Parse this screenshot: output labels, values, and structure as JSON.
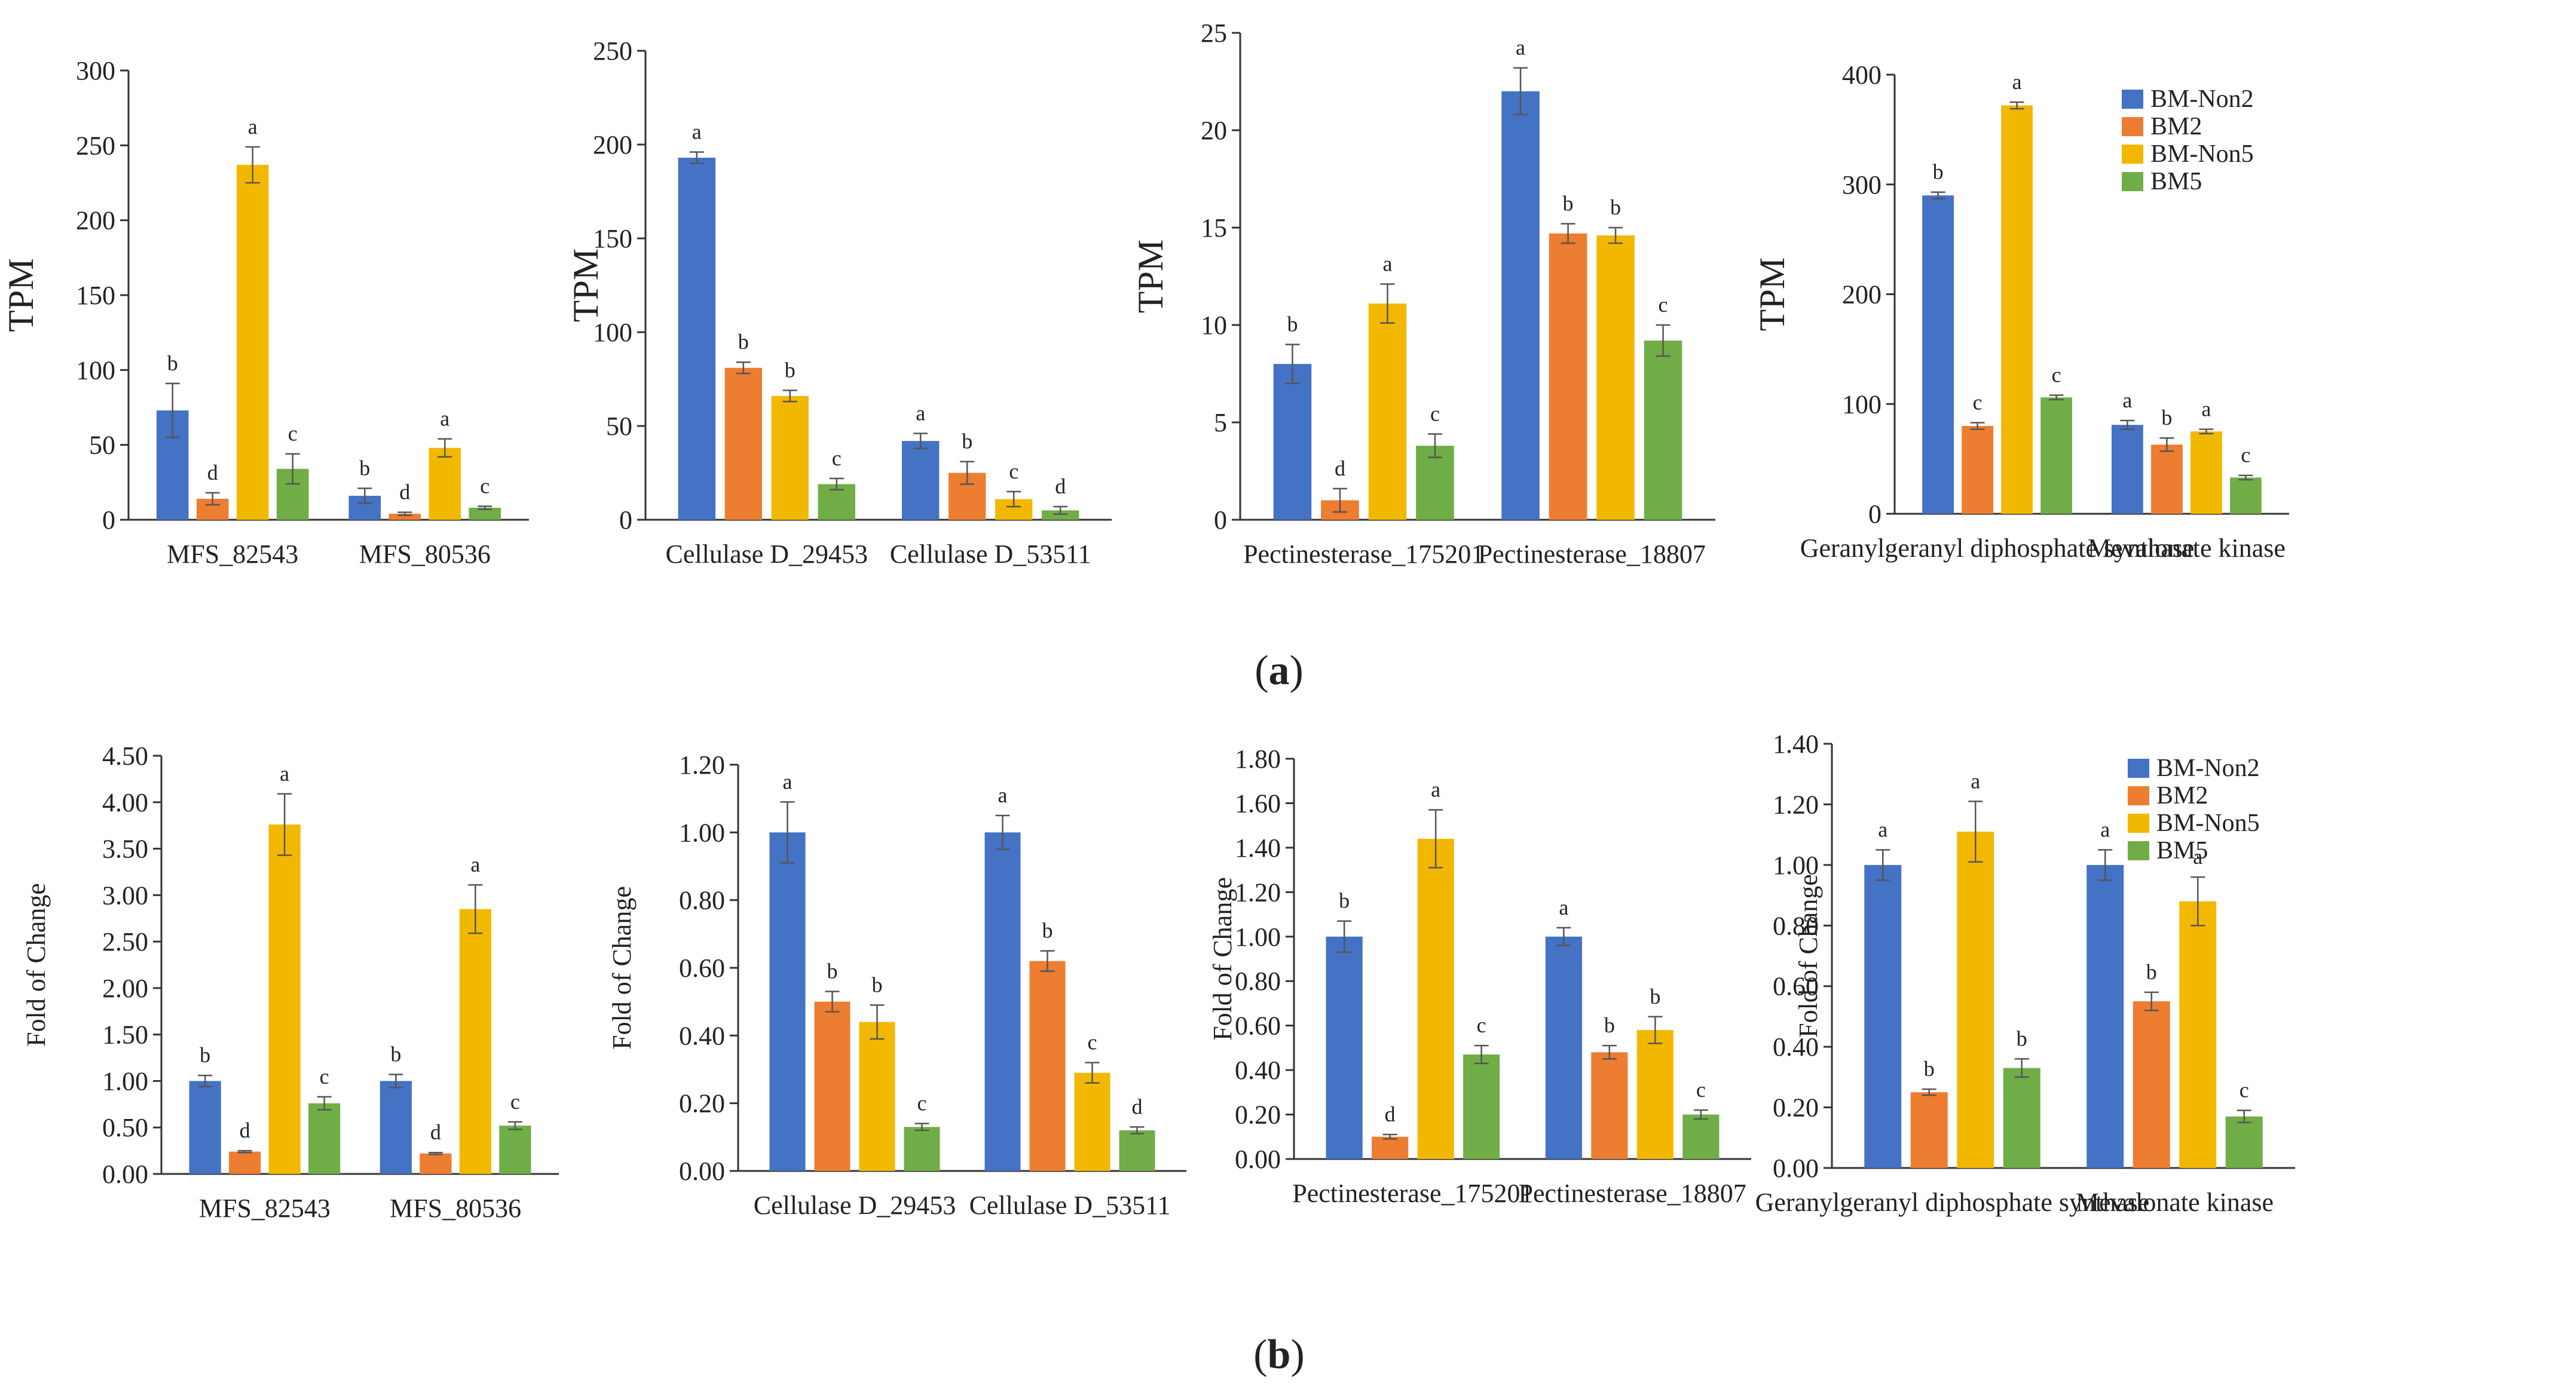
{
  "colors": {
    "BM-Non2": "#4472C4",
    "BM2": "#ED7D31",
    "BM-Non5": "#F2B800",
    "BM5": "#70AD47",
    "axis": "#333333",
    "error": "#555555"
  },
  "legend_items": [
    "BM-Non2",
    "BM2",
    "BM-Non5",
    "BM5"
  ],
  "chart_data": [
    {
      "type": "bar",
      "row": "a",
      "ylabel": "TPM",
      "ylim": [
        0,
        300
      ],
      "yticks": [
        "0",
        "50",
        "100",
        "150",
        "200",
        "250",
        "300"
      ],
      "categories": [
        "MFS_82543",
        "MFS_80536"
      ],
      "series": [
        {
          "name": "BM-Non2",
          "values": [
            73,
            16
          ],
          "errors": [
            18,
            5
          ],
          "letters": [
            "b",
            "b"
          ]
        },
        {
          "name": "BM2",
          "values": [
            14,
            4
          ],
          "errors": [
            4,
            1
          ],
          "letters": [
            "d",
            "d"
          ]
        },
        {
          "name": "BM-Non5",
          "values": [
            237,
            48
          ],
          "errors": [
            12,
            6
          ],
          "letters": [
            "a",
            "a"
          ]
        },
        {
          "name": "BM5",
          "values": [
            34,
            8
          ],
          "errors": [
            10,
            1
          ],
          "letters": [
            "c",
            "c"
          ]
        }
      ],
      "legend": false
    },
    {
      "type": "bar",
      "row": "a",
      "ylabel": "TPM",
      "ylim": [
        0,
        250
      ],
      "yticks": [
        "0",
        "50",
        "100",
        "150",
        "200",
        "250"
      ],
      "categories": [
        "Cellulase D_29453",
        "Cellulase D_53511"
      ],
      "series": [
        {
          "name": "BM-Non2",
          "values": [
            193,
            42
          ],
          "errors": [
            3,
            4
          ],
          "letters": [
            "a",
            "a"
          ]
        },
        {
          "name": "BM2",
          "values": [
            81,
            25
          ],
          "errors": [
            3,
            6
          ],
          "letters": [
            "b",
            "b"
          ]
        },
        {
          "name": "BM-Non5",
          "values": [
            66,
            11
          ],
          "errors": [
            3,
            4
          ],
          "letters": [
            "b",
            "c"
          ]
        },
        {
          "name": "BM5",
          "values": [
            19,
            5
          ],
          "errors": [
            3,
            2
          ],
          "letters": [
            "c",
            "d"
          ]
        }
      ],
      "legend": false
    },
    {
      "type": "bar",
      "row": "a",
      "ylabel": "TPM",
      "ylim": [
        0,
        25
      ],
      "yticks": [
        "0",
        "5",
        "10",
        "15",
        "20",
        "25"
      ],
      "categories": [
        "Pectinesterase_175201",
        "Pectinesterase_18807"
      ],
      "series": [
        {
          "name": "BM-Non2",
          "values": [
            8,
            22
          ],
          "errors": [
            1,
            1.2
          ],
          "letters": [
            "b",
            "a"
          ]
        },
        {
          "name": "BM2",
          "values": [
            1,
            14.7
          ],
          "errors": [
            0.6,
            0.5
          ],
          "letters": [
            "d",
            "b"
          ]
        },
        {
          "name": "BM-Non5",
          "values": [
            11.1,
            14.6
          ],
          "errors": [
            1,
            0.4
          ],
          "letters": [
            "a",
            "b"
          ]
        },
        {
          "name": "BM5",
          "values": [
            3.8,
            9.2
          ],
          "errors": [
            0.6,
            0.8
          ],
          "letters": [
            "c",
            "c"
          ]
        }
      ],
      "legend": false
    },
    {
      "type": "bar",
      "row": "a",
      "ylabel": "TPM",
      "ylim": [
        0,
        400
      ],
      "yticks": [
        "0",
        "100",
        "200",
        "300",
        "400"
      ],
      "categories": [
        "Geranylgeranyl diphosphate synthase",
        "Mevalonate kinase"
      ],
      "series": [
        {
          "name": "BM-Non2",
          "values": [
            290,
            81
          ],
          "errors": [
            3,
            4
          ],
          "letters": [
            "b",
            "a"
          ]
        },
        {
          "name": "BM2",
          "values": [
            80,
            63
          ],
          "errors": [
            3,
            6
          ],
          "letters": [
            "c",
            "b"
          ]
        },
        {
          "name": "BM-Non5",
          "values": [
            372,
            75
          ],
          "errors": [
            3,
            2
          ],
          "letters": [
            "a",
            "a"
          ]
        },
        {
          "name": "BM5",
          "values": [
            106,
            33
          ],
          "errors": [
            2,
            2
          ],
          "letters": [
            "c",
            "c"
          ]
        }
      ],
      "legend": true
    },
    {
      "type": "bar",
      "row": "b",
      "ylabel": "Fold of Change",
      "ylim": [
        0,
        4.5
      ],
      "yticks": [
        "0.00",
        "0.50",
        "1.00",
        "1.50",
        "2.00",
        "2.50",
        "3.00",
        "3.50",
        "4.00",
        "4.50"
      ],
      "categories": [
        "MFS_82543",
        "MFS_80536"
      ],
      "series": [
        {
          "name": "BM-Non2",
          "values": [
            1.0,
            1.0
          ],
          "errors": [
            0.06,
            0.07
          ],
          "letters": [
            "b",
            "b"
          ]
        },
        {
          "name": "BM2",
          "values": [
            0.24,
            0.22
          ],
          "errors": [
            0.01,
            0.01
          ],
          "letters": [
            "d",
            "d"
          ]
        },
        {
          "name": "BM-Non5",
          "values": [
            3.76,
            2.85
          ],
          "errors": [
            0.33,
            0.26
          ],
          "letters": [
            "a",
            "a"
          ]
        },
        {
          "name": "BM5",
          "values": [
            0.76,
            0.52
          ],
          "errors": [
            0.07,
            0.04
          ],
          "letters": [
            "c",
            "c"
          ]
        }
      ],
      "legend": false
    },
    {
      "type": "bar",
      "row": "b",
      "ylabel": "Fold of Change",
      "ylim": [
        0,
        1.2
      ],
      "yticks": [
        "0.00",
        "0.20",
        "0.40",
        "0.60",
        "0.80",
        "1.00",
        "1.20"
      ],
      "categories": [
        "Cellulase D_29453",
        "Cellulase D_53511"
      ],
      "series": [
        {
          "name": "BM-Non2",
          "values": [
            1.0,
            1.0
          ],
          "errors": [
            0.09,
            0.05
          ],
          "letters": [
            "a",
            "a"
          ]
        },
        {
          "name": "BM2",
          "values": [
            0.5,
            0.62
          ],
          "errors": [
            0.03,
            0.03
          ],
          "letters": [
            "b",
            "b"
          ]
        },
        {
          "name": "BM-Non5",
          "values": [
            0.44,
            0.29
          ],
          "errors": [
            0.05,
            0.03
          ],
          "letters": [
            "b",
            "c"
          ]
        },
        {
          "name": "BM5",
          "values": [
            0.13,
            0.12
          ],
          "errors": [
            0.01,
            0.01
          ],
          "letters": [
            "c",
            "d"
          ]
        }
      ],
      "legend": false
    },
    {
      "type": "bar",
      "row": "b",
      "ylabel": "Fold of Change",
      "ylim": [
        0,
        1.8
      ],
      "yticks": [
        "0.00",
        "0.20",
        "0.40",
        "0.60",
        "0.80",
        "1.00",
        "1.20",
        "1.40",
        "1.60",
        "1.80"
      ],
      "categories": [
        "Pectinesterase_175201",
        "Pectinesterase_18807"
      ],
      "series": [
        {
          "name": "BM-Non2",
          "values": [
            1.0,
            1.0
          ],
          "errors": [
            0.07,
            0.04
          ],
          "letters": [
            "b",
            "a"
          ]
        },
        {
          "name": "BM2",
          "values": [
            0.1,
            0.48
          ],
          "errors": [
            0.01,
            0.03
          ],
          "letters": [
            "d",
            "b"
          ]
        },
        {
          "name": "BM-Non5",
          "values": [
            1.44,
            0.58
          ],
          "errors": [
            0.13,
            0.06
          ],
          "letters": [
            "a",
            "b"
          ]
        },
        {
          "name": "BM5",
          "values": [
            0.47,
            0.2
          ],
          "errors": [
            0.04,
            0.02
          ],
          "letters": [
            "c",
            "c"
          ]
        }
      ],
      "legend": false
    },
    {
      "type": "bar",
      "row": "b",
      "ylabel": "Fold of Change",
      "ylim": [
        0,
        1.4
      ],
      "yticks": [
        "0.00",
        "0.20",
        "0.40",
        "0.60",
        "0.80",
        "1.00",
        "1.20",
        "1.40"
      ],
      "categories": [
        "Geranylgeranyl diphosphate synthase",
        "Mevalonate kinase"
      ],
      "series": [
        {
          "name": "BM-Non2",
          "values": [
            1.0,
            1.0
          ],
          "errors": [
            0.05,
            0.05
          ],
          "letters": [
            "a",
            "a"
          ]
        },
        {
          "name": "BM2",
          "values": [
            0.25,
            0.55
          ],
          "errors": [
            0.01,
            0.03
          ],
          "letters": [
            "b",
            "b"
          ]
        },
        {
          "name": "BM-Non5",
          "values": [
            1.11,
            0.88
          ],
          "errors": [
            0.1,
            0.08
          ],
          "letters": [
            "a",
            "a"
          ]
        },
        {
          "name": "BM5",
          "values": [
            0.33,
            0.17
          ],
          "errors": [
            0.03,
            0.02
          ],
          "letters": [
            "b",
            "c"
          ]
        }
      ],
      "legend": true
    }
  ],
  "panel_labels": {
    "a": "a",
    "b": "b"
  }
}
